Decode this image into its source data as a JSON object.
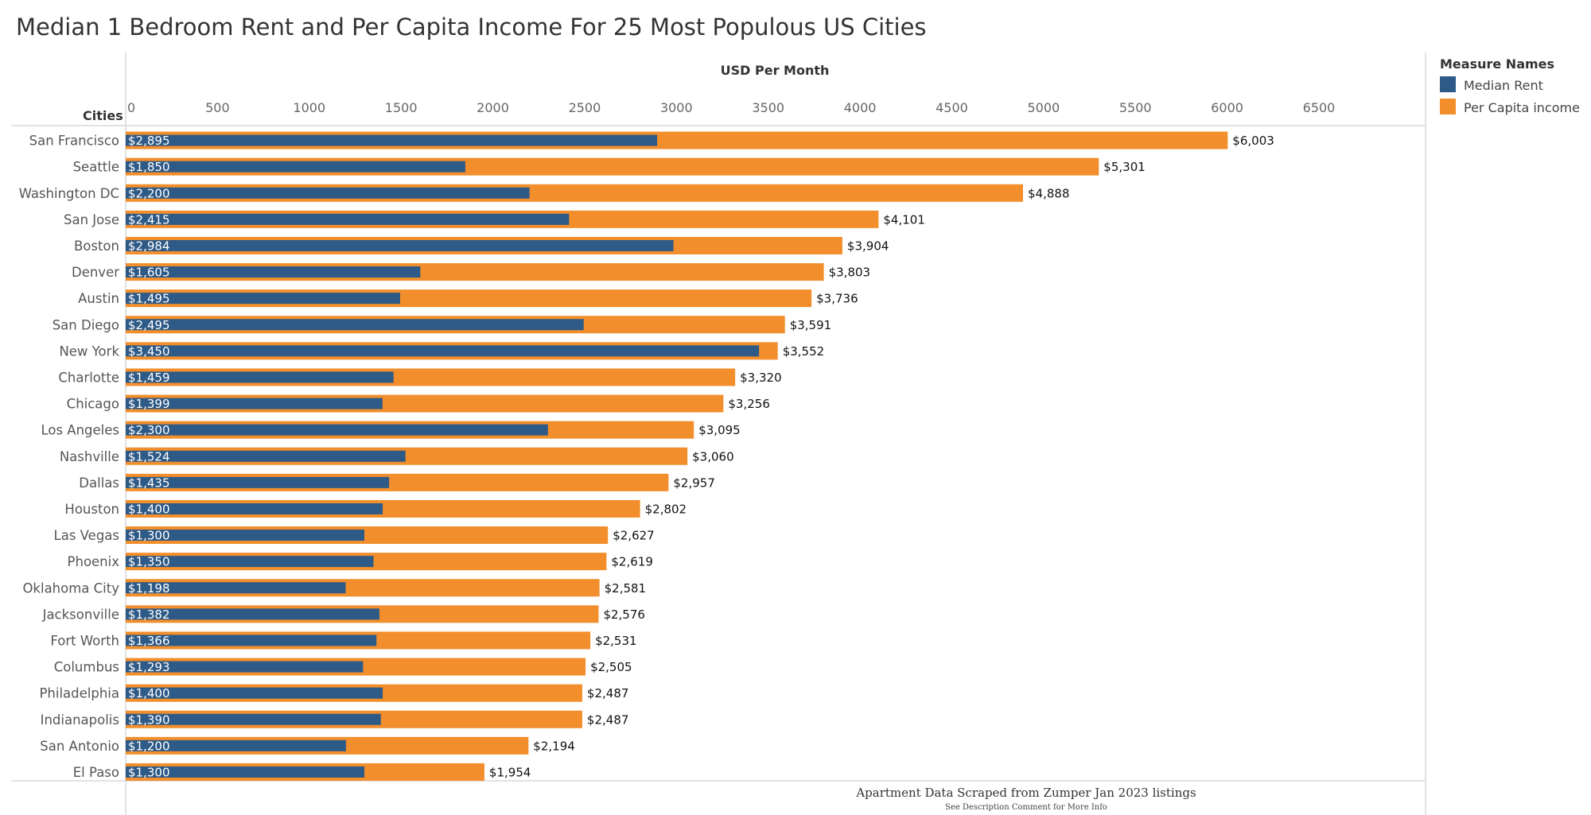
{
  "chart_data": {
    "type": "bar",
    "orientation": "horizontal",
    "title": "Median 1 Bedroom Rent and Per Capita Income For 25 Most Populous US Cities",
    "xlabel": "USD Per Month",
    "ylabel": "Cities",
    "xlim": [
      0,
      6500
    ],
    "xticks": [
      "0",
      "500",
      "1000",
      "1500",
      "2000",
      "2500",
      "3000",
      "3500",
      "4000",
      "4500",
      "5000",
      "5500",
      "6000",
      "6500"
    ],
    "categories": [
      "San Francisco",
      "Seattle",
      "Washington DC",
      "San Jose",
      "Boston",
      "Denver",
      "Austin",
      "San Diego",
      "New York",
      "Charlotte",
      "Chicago",
      "Los Angeles",
      "Nashville",
      "Dallas",
      "Houston",
      "Las Vegas",
      "Phoenix",
      "Oklahoma City",
      "Jacksonville",
      "Fort Worth",
      "Columbus",
      "Philadelphia",
      "Indianapolis",
      "San Antonio",
      "El Paso"
    ],
    "series": [
      {
        "name": "Median Rent",
        "color": "#2e5a87",
        "values": [
          2895,
          1850,
          2200,
          2415,
          2984,
          1605,
          1495,
          2495,
          3450,
          1459,
          1399,
          2300,
          1524,
          1435,
          1400,
          1300,
          1350,
          1198,
          1382,
          1366,
          1293,
          1400,
          1390,
          1200,
          1300
        ],
        "labels": [
          "$2,895",
          "$1,850",
          "$2,200",
          "$2,415",
          "$2,984",
          "$1,605",
          "$1,495",
          "$2,495",
          "$3,450",
          "$1,459",
          "$1,399",
          "$2,300",
          "$1,524",
          "$1,435",
          "$1,400",
          "$1,300",
          "$1,350",
          "$1,198",
          "$1,382",
          "$1,366",
          "$1,293",
          "$1,400",
          "$1,390",
          "$1,200",
          "$1,300"
        ]
      },
      {
        "name": "Per Capita income",
        "color": "#f28e2b",
        "values": [
          6003,
          5301,
          4888,
          4101,
          3904,
          3803,
          3736,
          3591,
          3552,
          3320,
          3256,
          3095,
          3060,
          2957,
          2802,
          2627,
          2619,
          2581,
          2576,
          2531,
          2505,
          2487,
          2487,
          2194,
          1954
        ],
        "labels": [
          "$6,003",
          "$5,301",
          "$4,888",
          "$4,101",
          "$3,904",
          "$3,803",
          "$3,736",
          "$3,591",
          "$3,552",
          "$3,320",
          "$3,256",
          "$3,095",
          "$3,060",
          "$2,957",
          "$2,802",
          "$2,627",
          "$2,619",
          "$2,581",
          "$2,576",
          "$2,531",
          "$2,505",
          "$2,487",
          "$2,487",
          "$2,194",
          "$1,954"
        ]
      }
    ],
    "legend": {
      "title": "Measure Names",
      "position": "right"
    },
    "grid": false
  },
  "footer": {
    "source": "Apartment Data Scraped from Zumper Jan 2023 listings",
    "note": "See Description Comment for More Info"
  }
}
